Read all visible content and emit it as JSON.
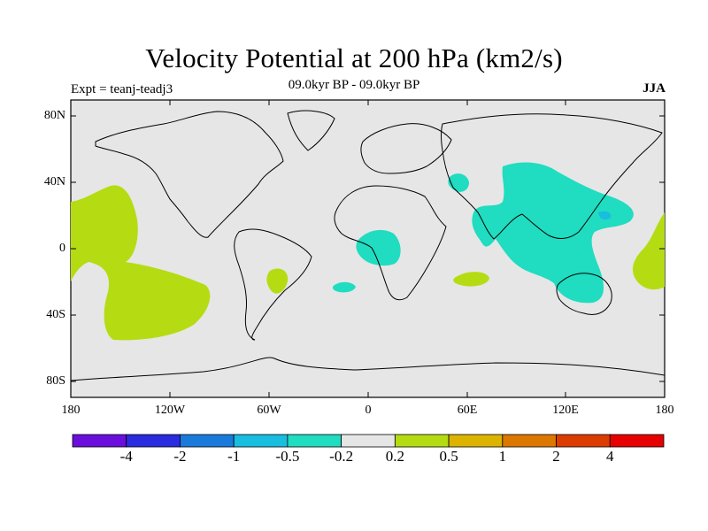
{
  "title": "Velocity Potential at 200 hPa (km2/s)",
  "subtitle": "09.0kyr BP - 09.0kyr BP",
  "expt_label": "Expt = teanj-teadj3",
  "season": "JJA",
  "axes": {
    "lat_ticks": [
      "80N",
      "40N",
      "0",
      "40S",
      "80S"
    ],
    "lon_ticks": [
      "180",
      "120W",
      "60W",
      "0",
      "60E",
      "120E",
      "180"
    ]
  },
  "colorbar": {
    "colors": [
      "#6a0fdb",
      "#2b2be0",
      "#1a7adc",
      "#18bde0",
      "#20dcc0",
      "#e6e6e6",
      "#b5dc12",
      "#dcb400",
      "#dc7800",
      "#dc3c00",
      "#e60000"
    ],
    "labels": [
      "-4",
      "-2",
      "-1",
      "-0.5",
      "-0.2",
      "0.2",
      "0.5",
      "1",
      "2",
      "4"
    ]
  },
  "colors": {
    "background_land_ocean": "#e6e6e6",
    "negative_small": "#20dcc0",
    "negative_medium": "#18bde0",
    "positive_small": "#b5dc12"
  }
}
